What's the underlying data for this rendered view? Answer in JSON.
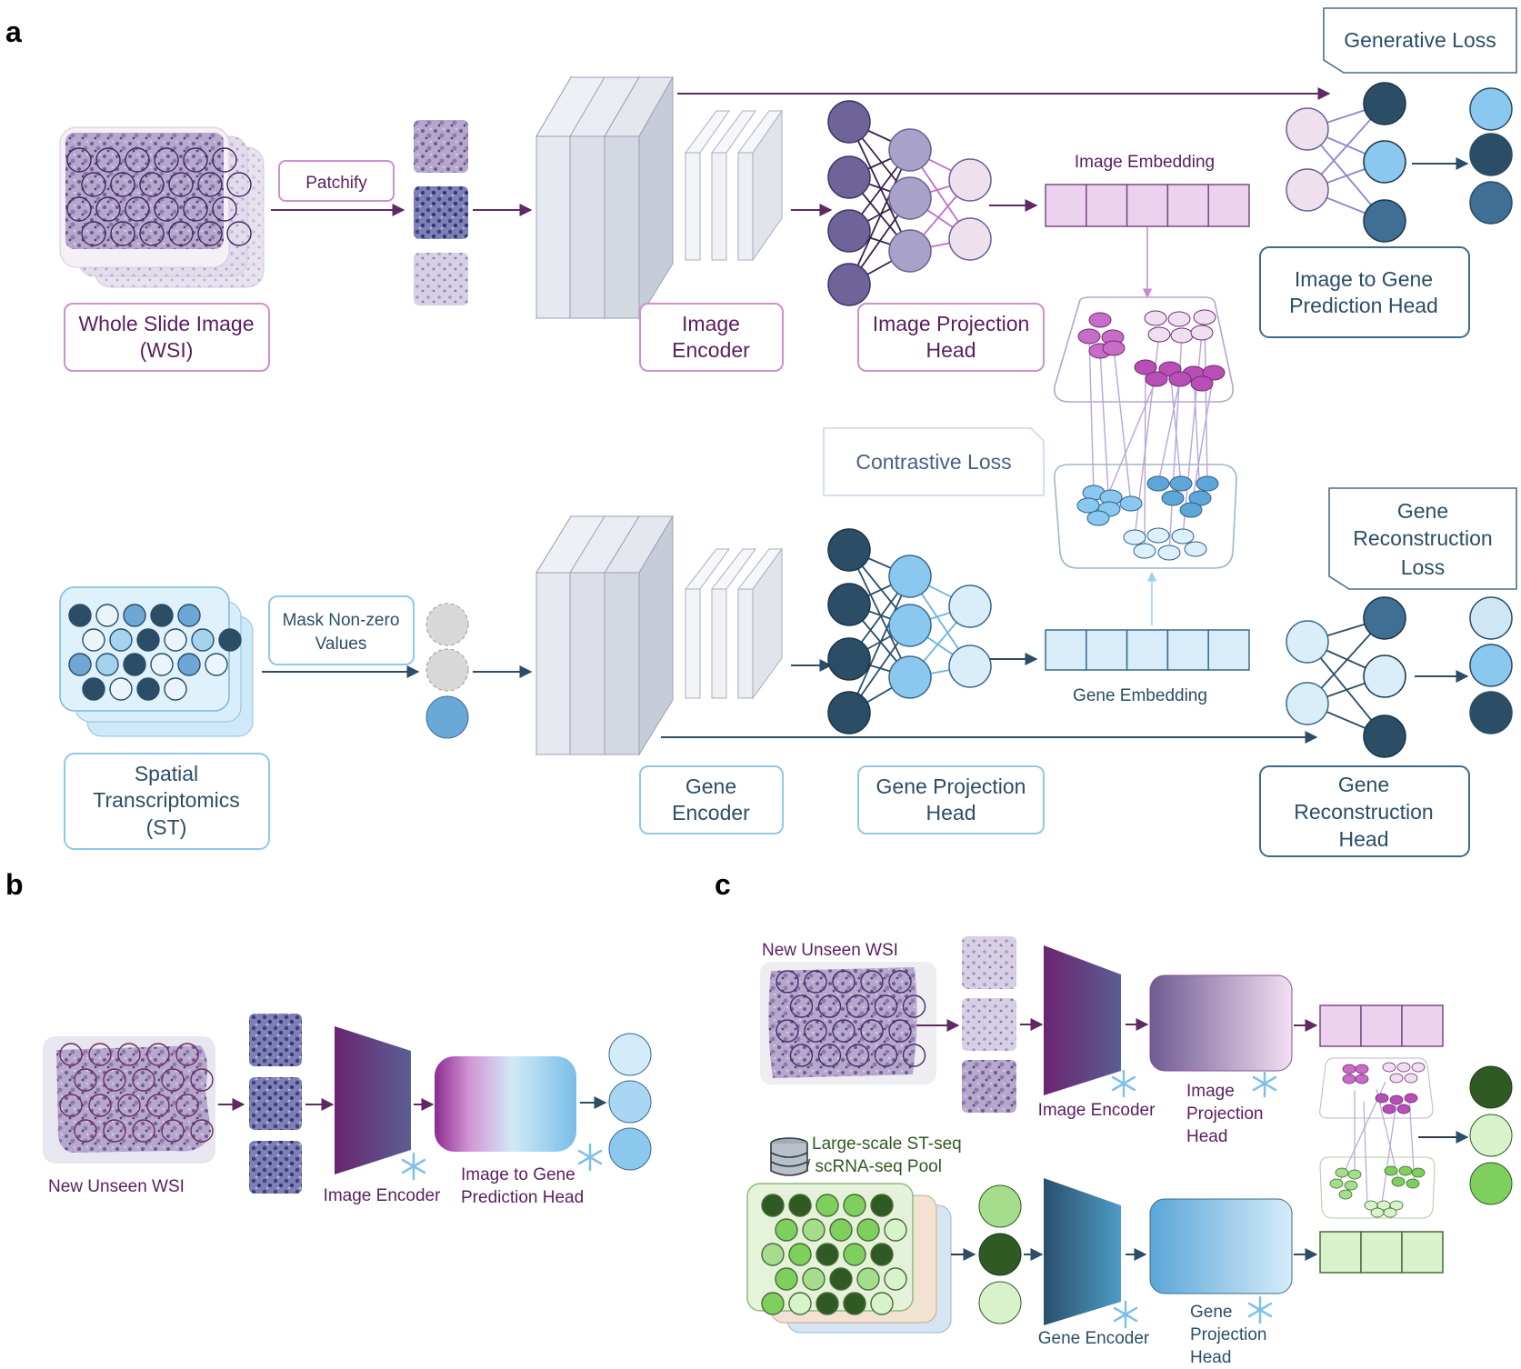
{
  "panels": {
    "a": "a",
    "b": "b",
    "c": "c"
  },
  "colors": {
    "purple_dark": "#5f2a62",
    "purple_mid": "#8a4f96",
    "pink_box": "#c879c4",
    "lavender": "#e9cfee",
    "blue_dark": "#2b4e66",
    "blue_mid": "#88c6ee",
    "blue_light": "#d3eaf8",
    "green_dark": "#2f5a23",
    "green_mid": "#7fcf5e",
    "green_light": "#d8f2cc"
  },
  "icons": [
    "snowflake-icon",
    "database-icon"
  ],
  "panel_a": {
    "wsi_label": [
      "Whole Slide Image",
      "(WSI)"
    ],
    "patchify_label": "Patchify",
    "image_encoder_label": [
      "Image",
      "Encoder"
    ],
    "image_projection_head_label": [
      "Image Projection",
      "Head"
    ],
    "image_embedding_label": "Image Embedding",
    "generative_loss_label": "Generative Loss",
    "image_to_gene_head_label": [
      "Image to Gene",
      "Prediction Head"
    ],
    "contrastive_loss_label": "Contrastive Loss",
    "st_label": [
      "Spatial",
      "Transcriptomics",
      "(ST)"
    ],
    "mask_label": [
      "Mask Non-zero",
      "Values"
    ],
    "gene_encoder_label": [
      "Gene",
      "Encoder"
    ],
    "gene_projection_head_label": [
      "Gene Projection",
      "Head"
    ],
    "gene_embedding_label": "Gene Embedding",
    "gene_reconstruction_loss_label": [
      "Gene",
      "Reconstruction",
      "Loss"
    ],
    "gene_reconstruction_head_label": [
      "Gene",
      "Reconstruction",
      "Head"
    ]
  },
  "panel_b": {
    "wsi_label": "New Unseen WSI",
    "image_encoder_label": "Image Encoder",
    "head_label_line1": "Image to Gene",
    "head_label_line2": "Prediction Head"
  },
  "panel_c": {
    "wsi_label": "New Unseen WSI",
    "image_encoder_label": "Image Encoder",
    "image_projection_head_label": [
      "Image",
      "Projection",
      "Head"
    ],
    "pool_label": [
      "Large-scale ST-seq",
      "/ scRNA-seq Pool"
    ],
    "gene_encoder_label": "Gene Encoder",
    "gene_projection_head_label": [
      "Gene",
      "Projection",
      "Head"
    ]
  }
}
